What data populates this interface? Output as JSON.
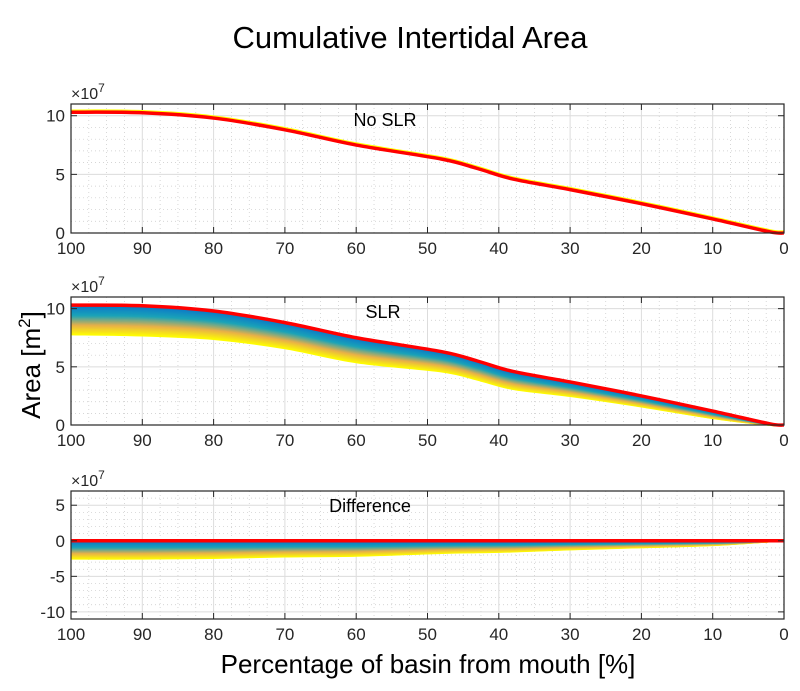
{
  "chart_data": {
    "title": "Cumulative Intertidal Area",
    "ylabel": "Area [m",
    "ylabel_sup": "2",
    "ylabel_end": "]",
    "xlabel": "Percentage of basin from mouth [%]",
    "x_reversed": true,
    "xlim": [
      100,
      0
    ],
    "xticks": [
      "100",
      "90",
      "80",
      "70",
      "60",
      "50",
      "40",
      "30",
      "20",
      "10",
      "0"
    ],
    "grid": true,
    "colors": {
      "no_slr": "#ff0000",
      "ensemble_stops": [
        "#0b78c8",
        "#1aa3b8",
        "#e8b048",
        "#ffff00"
      ]
    },
    "x": [
      100,
      90,
      80,
      70,
      60,
      48,
      43,
      38,
      30,
      20,
      10,
      2,
      0
    ],
    "panels": [
      {
        "type": "line",
        "label": "No SLR",
        "exponent_base": "×10",
        "exponent_power": "7",
        "ylim": [
          0,
          11
        ],
        "yticks": [
          "0",
          "5",
          "10"
        ],
        "ytick_values": [
          0,
          5,
          10
        ],
        "series": [
          {
            "values": [
              10.3,
              10.25,
              9.8,
              8.8,
              7.5,
              6.3,
              5.5,
              4.6,
              3.7,
              2.5,
              1.2,
              0.1,
              0
            ],
            "color": "#ff0000"
          }
        ]
      },
      {
        "type": "line",
        "label": "SLR",
        "exponent_base": "×10",
        "exponent_power": "7",
        "ylim": [
          0,
          11
        ],
        "yticks": [
          "0",
          "5",
          "10"
        ],
        "ytick_values": [
          0,
          5,
          10
        ],
        "ensemble_upper": [
          10.3,
          10.25,
          9.8,
          8.8,
          7.5,
          6.3,
          5.5,
          4.6,
          3.7,
          2.5,
          1.2,
          0.1,
          0
        ],
        "ensemble_lower": [
          7.8,
          7.7,
          7.4,
          6.6,
          5.4,
          4.6,
          3.9,
          3.1,
          2.5,
          1.6,
          0.6,
          0.02,
          0
        ],
        "series": [
          {
            "values": [
              10.3,
              10.25,
              9.8,
              8.8,
              7.5,
              6.3,
              5.5,
              4.6,
              3.7,
              2.5,
              1.2,
              0.1,
              0
            ],
            "color": "#ff0000"
          }
        ]
      },
      {
        "type": "line",
        "label": "Difference",
        "exponent_base": "×10",
        "exponent_power": "7",
        "ylim": [
          -11,
          7
        ],
        "yticks": [
          "-10",
          "-5",
          "0",
          "5"
        ],
        "ytick_values": [
          -10,
          -5,
          0,
          5
        ],
        "ensemble_upper": [
          0,
          0,
          0,
          0,
          0,
          0,
          0,
          0,
          0,
          0,
          0,
          0,
          0
        ],
        "ensemble_lower": [
          -2.5,
          -2.5,
          -2.4,
          -2.2,
          -2.1,
          -1.7,
          -1.6,
          -1.5,
          -1.2,
          -0.9,
          -0.6,
          -0.08,
          0
        ],
        "series": [
          {
            "values": [
              0,
              0,
              0,
              0,
              0,
              0,
              0,
              0,
              0,
              0,
              0,
              0,
              0
            ],
            "color": "#ff0000"
          }
        ]
      }
    ]
  }
}
